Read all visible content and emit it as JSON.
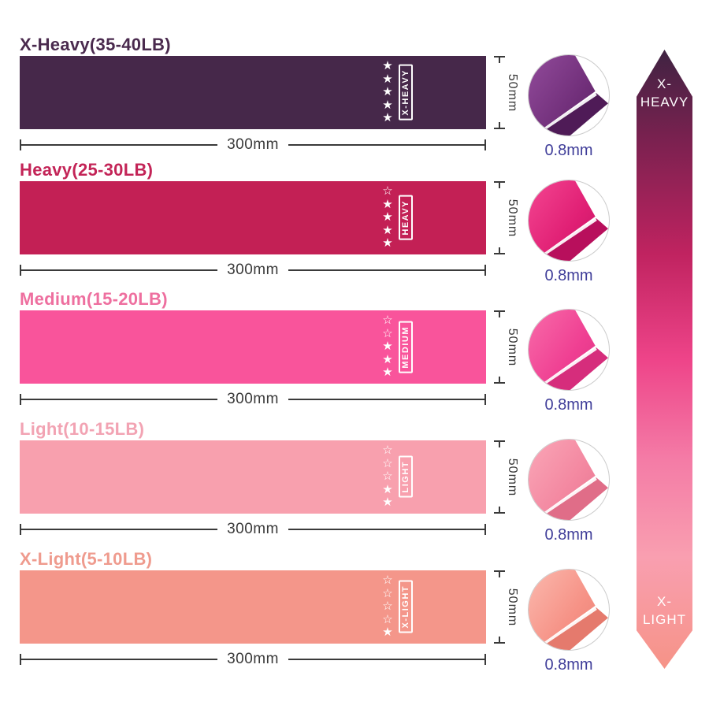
{
  "colors": {
    "background": "#ffffff",
    "dimension": "#3a3a3a",
    "thickness_text": "#3f3d99",
    "star": "#ffffff",
    "circle_border": "#cccccc"
  },
  "bands": [
    {
      "title": "X-Heavy(35-40LB)",
      "title_color": "#4a2a4e",
      "band_color": "#46284a",
      "rating_label": "X-HEAVY",
      "stars": "★★★★★",
      "stars_filled": 5,
      "stars_total": 5,
      "width_label": "300mm",
      "height_label": "50mm",
      "thickness_label": "0.8mm",
      "fold_colors": {
        "light": "#8d4796",
        "main": "#72307b",
        "dark": "#4f1b57"
      }
    },
    {
      "title": "Heavy(25-30LB)",
      "title_color": "#c32457",
      "band_color": "#c32055",
      "rating_label": "HEAVY",
      "stars": "☆★★★★",
      "stars_filled": 4,
      "stars_total": 5,
      "width_label": "300mm",
      "height_label": "50mm",
      "thickness_label": "0.8mm",
      "fold_colors": {
        "light": "#f1408d",
        "main": "#e01f74",
        "dark": "#b80f5c"
      }
    },
    {
      "title": "Medium(15-20LB)",
      "title_color": "#ee6f9f",
      "band_color": "#f9549b",
      "rating_label": "MEDIUM",
      "stars": "☆☆★★★",
      "stars_filled": 3,
      "stars_total": 5,
      "width_label": "300mm",
      "height_label": "50mm",
      "thickness_label": "0.8mm",
      "fold_colors": {
        "light": "#f765a6",
        "main": "#ef3f92",
        "dark": "#d62d7c"
      }
    },
    {
      "title": "Light(10-15LB)",
      "title_color": "#f2a3b3",
      "band_color": "#f8a0ae",
      "rating_label": "LIGHT",
      "stars": "☆☆☆★★",
      "stars_filled": 2,
      "stars_total": 5,
      "width_label": "300mm",
      "height_label": "50mm",
      "thickness_label": "0.8mm",
      "fold_colors": {
        "light": "#f9a2b4",
        "main": "#f387a0",
        "dark": "#e06d88"
      }
    },
    {
      "title": "X-Light(5-10LB)",
      "title_color": "#ef9b8e",
      "band_color": "#f4968a",
      "rating_label": "X-LIGHT",
      "stars": "☆☆☆☆★",
      "stars_filled": 1,
      "stars_total": 5,
      "width_label": "300mm",
      "height_label": "50mm",
      "thickness_label": "0.8mm",
      "fold_colors": {
        "light": "#fab3a8",
        "main": "#f69286",
        "dark": "#e57a6d"
      }
    }
  ],
  "arrow": {
    "top_label_line1": "X-",
    "top_label_line2": "HEAVY",
    "bottom_label_line1": "X-",
    "bottom_label_line2": "LIGHT",
    "text_color": "#ffffff",
    "gradient": [
      "#3f2342",
      "#7c2150",
      "#c02360",
      "#ee4489",
      "#f47ba6",
      "#f99fb0",
      "#f69387"
    ]
  }
}
